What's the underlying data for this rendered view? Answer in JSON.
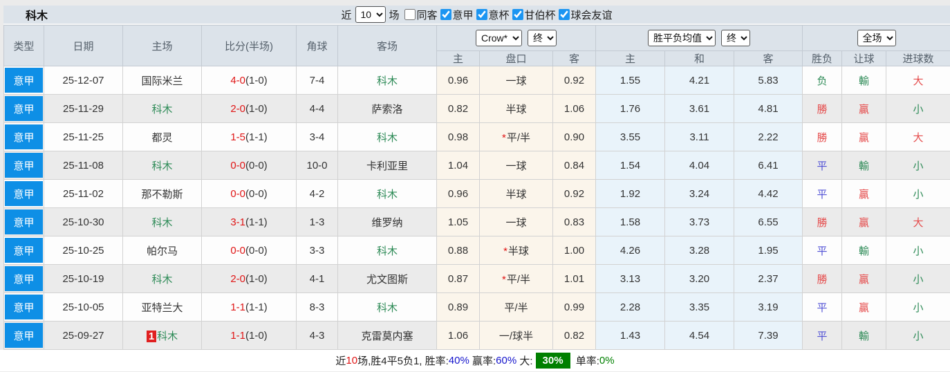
{
  "title": "科木",
  "filters": {
    "recent_label": "近",
    "recent_value": "10",
    "games_label": "场",
    "checkboxes": [
      {
        "label": "同客",
        "checked": false
      },
      {
        "label": "意甲",
        "checked": true
      },
      {
        "label": "意杯",
        "checked": true
      },
      {
        "label": "甘伯杯",
        "checked": true
      },
      {
        "label": "球会友谊",
        "checked": true
      }
    ]
  },
  "header": {
    "type": "类型",
    "date": "日期",
    "home": "主场",
    "score": "比分(半场)",
    "corner": "角球",
    "away": "客场",
    "odds_select": "Crow*",
    "odds_time_select": "终",
    "odds_sub": [
      "主",
      "盘口",
      "客"
    ],
    "avg_select": "胜平负均值",
    "avg_time_select": "终",
    "avg_sub": [
      "主",
      "和",
      "客"
    ],
    "result_select": "全场",
    "result_sub": [
      "胜负",
      "让球",
      "进球数"
    ]
  },
  "rows": [
    {
      "type": "意甲",
      "date": "25-12-07",
      "home": "国际米兰",
      "home_green": false,
      "home_badge": "",
      "score": "4-0",
      "half": "(1-0)",
      "corner": "7-4",
      "away": "科木",
      "away_green": true,
      "odds_home": "0.96",
      "handicap": "一球",
      "handicap_star": false,
      "odds_away": "0.92",
      "avg_home": "1.55",
      "avg_draw": "4.21",
      "avg_away": "5.83",
      "result": "负",
      "result_color": "green",
      "handicap_result": "輸",
      "handicap_result_color": "green",
      "goals": "大",
      "goals_color": "red"
    },
    {
      "type": "意甲",
      "date": "25-11-29",
      "home": "科木",
      "home_green": true,
      "home_badge": "",
      "score": "2-0",
      "half": "(1-0)",
      "corner": "4-4",
      "away": "萨索洛",
      "away_green": false,
      "odds_home": "0.82",
      "handicap": "半球",
      "handicap_star": false,
      "odds_away": "1.06",
      "avg_home": "1.76",
      "avg_draw": "3.61",
      "avg_away": "4.81",
      "result": "勝",
      "result_color": "red",
      "handicap_result": "贏",
      "handicap_result_color": "red",
      "goals": "小",
      "goals_color": "green"
    },
    {
      "type": "意甲",
      "date": "25-11-25",
      "home": "都灵",
      "home_green": false,
      "home_badge": "",
      "score": "1-5",
      "half": "(1-1)",
      "corner": "3-4",
      "away": "科木",
      "away_green": true,
      "odds_home": "0.98",
      "handicap": "平/半",
      "handicap_star": true,
      "odds_away": "0.90",
      "avg_home": "3.55",
      "avg_draw": "3.11",
      "avg_away": "2.22",
      "result": "勝",
      "result_color": "red",
      "handicap_result": "贏",
      "handicap_result_color": "red",
      "goals": "大",
      "goals_color": "red"
    },
    {
      "type": "意甲",
      "date": "25-11-08",
      "home": "科木",
      "home_green": true,
      "home_badge": "",
      "score": "0-0",
      "half": "(0-0)",
      "corner": "10-0",
      "away": "卡利亚里",
      "away_green": false,
      "odds_home": "1.04",
      "handicap": "一球",
      "handicap_star": false,
      "odds_away": "0.84",
      "avg_home": "1.54",
      "avg_draw": "4.04",
      "avg_away": "6.41",
      "result": "平",
      "result_color": "blue",
      "handicap_result": "輸",
      "handicap_result_color": "green",
      "goals": "小",
      "goals_color": "green"
    },
    {
      "type": "意甲",
      "date": "25-11-02",
      "home": "那不勒斯",
      "home_green": false,
      "home_badge": "",
      "score": "0-0",
      "half": "(0-0)",
      "corner": "4-2",
      "away": "科木",
      "away_green": true,
      "odds_home": "0.96",
      "handicap": "半球",
      "handicap_star": false,
      "odds_away": "0.92",
      "avg_home": "1.92",
      "avg_draw": "3.24",
      "avg_away": "4.42",
      "result": "平",
      "result_color": "blue",
      "handicap_result": "贏",
      "handicap_result_color": "red",
      "goals": "小",
      "goals_color": "green"
    },
    {
      "type": "意甲",
      "date": "25-10-30",
      "home": "科木",
      "home_green": true,
      "home_badge": "",
      "score": "3-1",
      "half": "(1-1)",
      "corner": "1-3",
      "away": "维罗纳",
      "away_green": false,
      "odds_home": "1.05",
      "handicap": "一球",
      "handicap_star": false,
      "odds_away": "0.83",
      "avg_home": "1.58",
      "avg_draw": "3.73",
      "avg_away": "6.55",
      "result": "勝",
      "result_color": "red",
      "handicap_result": "贏",
      "handicap_result_color": "red",
      "goals": "大",
      "goals_color": "red"
    },
    {
      "type": "意甲",
      "date": "25-10-25",
      "home": "帕尔马",
      "home_green": false,
      "home_badge": "",
      "score": "0-0",
      "half": "(0-0)",
      "corner": "3-3",
      "away": "科木",
      "away_green": true,
      "odds_home": "0.88",
      "handicap": "半球",
      "handicap_star": true,
      "odds_away": "1.00",
      "avg_home": "4.26",
      "avg_draw": "3.28",
      "avg_away": "1.95",
      "result": "平",
      "result_color": "blue",
      "handicap_result": "輸",
      "handicap_result_color": "green",
      "goals": "小",
      "goals_color": "green"
    },
    {
      "type": "意甲",
      "date": "25-10-19",
      "home": "科木",
      "home_green": true,
      "home_badge": "",
      "score": "2-0",
      "half": "(1-0)",
      "corner": "4-1",
      "away": "尤文图斯",
      "away_green": false,
      "odds_home": "0.87",
      "handicap": "平/半",
      "handicap_star": true,
      "odds_away": "1.01",
      "avg_home": "3.13",
      "avg_draw": "3.20",
      "avg_away": "2.37",
      "result": "勝",
      "result_color": "red",
      "handicap_result": "贏",
      "handicap_result_color": "red",
      "goals": "小",
      "goals_color": "green"
    },
    {
      "type": "意甲",
      "date": "25-10-05",
      "home": "亚特兰大",
      "home_green": false,
      "home_badge": "",
      "score": "1-1",
      "half": "(1-1)",
      "corner": "8-3",
      "away": "科木",
      "away_green": true,
      "odds_home": "0.89",
      "handicap": "平/半",
      "handicap_star": false,
      "odds_away": "0.99",
      "avg_home": "2.28",
      "avg_draw": "3.35",
      "avg_away": "3.19",
      "result": "平",
      "result_color": "blue",
      "handicap_result": "贏",
      "handicap_result_color": "red",
      "goals": "小",
      "goals_color": "green"
    },
    {
      "type": "意甲",
      "date": "25-09-27",
      "home": "科木",
      "home_green": true,
      "home_badge": "1",
      "score": "1-1",
      "half": "(1-0)",
      "corner": "4-3",
      "away": "克雷莫内塞",
      "away_green": false,
      "odds_home": "1.06",
      "handicap": "一/球半",
      "handicap_star": false,
      "odds_away": "0.82",
      "avg_home": "1.43",
      "avg_draw": "4.54",
      "avg_away": "7.39",
      "result": "平",
      "result_color": "blue",
      "handicap_result": "輸",
      "handicap_result_color": "green",
      "goals": "小",
      "goals_color": "green"
    }
  ],
  "summary": {
    "parts": [
      {
        "text": "近",
        "style": "plain"
      },
      {
        "text": "10",
        "style": "red"
      },
      {
        "text": "场,胜4平5负1, 胜率:",
        "style": "plain"
      },
      {
        "text": "40%",
        "style": "blue"
      },
      {
        "text": " 赢率:",
        "style": "plain"
      },
      {
        "text": "60%",
        "style": "blue"
      },
      {
        "text": " 大:",
        "style": "plain"
      },
      {
        "text": "30%",
        "style": "green-badge"
      },
      {
        "text": " 单率:",
        "style": "plain"
      },
      {
        "text": "0%",
        "style": "green"
      }
    ]
  },
  "colors": {
    "league_badge_blue": "#0e8fe6",
    "team_green": "#2e8b57",
    "score_red": "#e01414",
    "win_red": "#e54b4b",
    "draw_blue": "#5050d5",
    "loss_green": "#2e8b57",
    "summary_badge_green": "#008000",
    "header_bg": "#dce3ea",
    "odds_col_bg": "#fbf5eb",
    "avg_col_bg": "#e9f3fa"
  }
}
